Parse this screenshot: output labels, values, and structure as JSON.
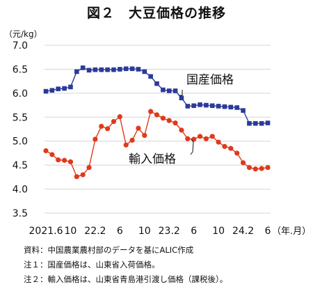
{
  "title": "図２　大豆価格の推移",
  "unit_label": "（元/kg）",
  "x_tick_labels": [
    "2021.6",
    "10",
    "22.2",
    "6",
    "10",
    "23.2",
    "6",
    "10",
    "24.2",
    "6"
  ],
  "x_axis_suffix": "（年.月）",
  "series_labels": {
    "domestic": "国産価格",
    "import": "輸入価格"
  },
  "notes": [
    "資料：中国農業農村部のデータを基にALIC作成",
    "注１：国産価格は、山東省入荷価格。",
    "注２：輸入価格は、山東省青島港引渡し価格（課税後）。"
  ],
  "chart_data": {
    "type": "line",
    "title": "図２　大豆価格の推移",
    "ylabel": "（元/kg）",
    "xlabel": "（年.月）",
    "ylim": [
      3.5,
      7.0
    ],
    "yticks": [
      "3.5",
      "4.0",
      "4.5",
      "5.0",
      "5.5",
      "6.0",
      "6.5",
      "7.0"
    ],
    "x": [
      "2021.6",
      "2021.7",
      "2021.8",
      "2021.9",
      "2021.10",
      "2021.11",
      "2021.12",
      "2022.1",
      "2022.2",
      "2022.3",
      "2022.4",
      "2022.5",
      "2022.6",
      "2022.7",
      "2022.8",
      "2022.9",
      "2022.10",
      "2022.11",
      "2022.12",
      "2023.1",
      "2023.2",
      "2023.3",
      "2023.4",
      "2023.5",
      "2023.6",
      "2023.7",
      "2023.8",
      "2023.9",
      "2023.10",
      "2023.11",
      "2023.12",
      "2024.1",
      "2024.2",
      "2024.3",
      "2024.4",
      "2024.5",
      "2024.6"
    ],
    "series": [
      {
        "name": "国産価格",
        "color": "#2b3a9a",
        "marker": "square",
        "values": [
          6.04,
          6.06,
          6.09,
          6.1,
          6.13,
          6.45,
          6.53,
          6.48,
          6.49,
          6.49,
          6.49,
          6.49,
          6.5,
          6.51,
          6.51,
          6.5,
          6.45,
          6.35,
          6.2,
          6.07,
          6.05,
          6.05,
          5.9,
          5.73,
          5.74,
          5.76,
          5.75,
          5.74,
          5.73,
          5.72,
          5.71,
          5.7,
          5.64,
          5.37,
          5.37,
          5.37,
          5.38
        ]
      },
      {
        "name": "輸入価格",
        "color": "#e0391b",
        "marker": "circle",
        "values": [
          4.8,
          4.72,
          4.61,
          4.6,
          4.57,
          4.26,
          4.3,
          4.45,
          5.04,
          5.31,
          5.26,
          5.41,
          5.51,
          4.92,
          5.02,
          5.27,
          5.12,
          5.62,
          5.55,
          5.48,
          5.43,
          5.38,
          5.23,
          5.05,
          5.04,
          5.1,
          5.05,
          5.1,
          4.98,
          4.89,
          4.85,
          4.75,
          4.55,
          4.45,
          4.42,
          4.43,
          4.45
        ]
      }
    ]
  }
}
